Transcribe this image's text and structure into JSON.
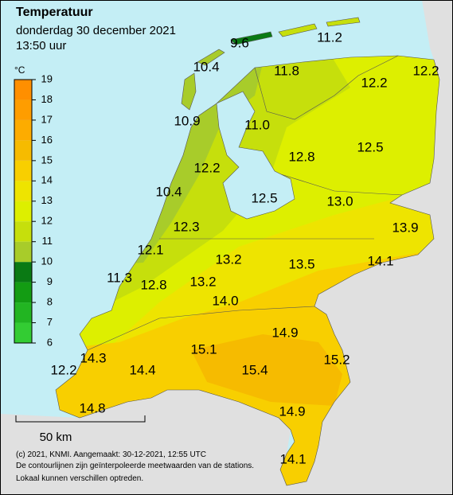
{
  "header": {
    "title": "Temperatuur",
    "date": "donderdag 30 december 2021",
    "time": "13:50 uur"
  },
  "legend": {
    "unit": "°C",
    "ticks": [
      6,
      7,
      8,
      9,
      10,
      11,
      12,
      13,
      14,
      15,
      16,
      17,
      18,
      19
    ],
    "colors": [
      "#33cc33",
      "#22b522",
      "#139c13",
      "#0a7a14",
      "#a8cc2a",
      "#c6df0c",
      "#ddef00",
      "#eee400",
      "#f8cf00",
      "#f6bb00",
      "#fdac00",
      "#fe9d00",
      "#ff8f00"
    ]
  },
  "stations": [
    "9.6",
    "11.2",
    "10.4",
    "11.8",
    "12.2",
    "12.2",
    "10.9",
    "11.0",
    "12.8",
    "12.5",
    "12.2",
    "10.4",
    "12.5",
    "13.0",
    "12.3",
    "13.9",
    "12.1",
    "13.2",
    "13.5",
    "14.1",
    "11.3",
    "12.8",
    "13.2",
    "14.0",
    "14.9",
    "15.1",
    "14.3",
    "15.2",
    "15.4",
    "12.2",
    "14.4",
    "14.8",
    "14.9",
    "14.1"
  ],
  "scale_bar": "50 km",
  "footer": [
    "(c) 2021, KNMI. Aangemaakt: 30-12-2021, 12:55 UTC",
    "De contourlijnen zijn geïnterpoleerde meetwaarden van de stations.",
    "Lokaal kunnen verschillen optreden."
  ]
}
